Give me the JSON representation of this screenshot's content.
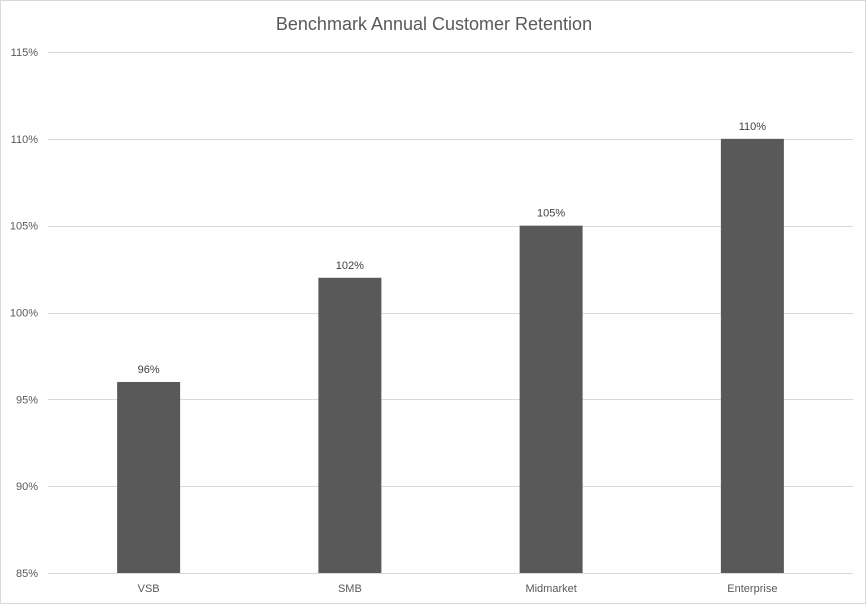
{
  "chart_data": {
    "type": "bar",
    "title": "Benchmark Annual Customer Retention",
    "categories": [
      "VSB",
      "SMB",
      "Midmarket",
      "Enterprise"
    ],
    "values": [
      96,
      102,
      105,
      110
    ],
    "data_labels": [
      "96%",
      "102%",
      "105%",
      "110%"
    ],
    "ylim": [
      85,
      115
    ],
    "yticks": [
      85,
      90,
      95,
      100,
      105,
      110,
      115
    ],
    "ytick_labels": [
      "85%",
      "90%",
      "95%",
      "100%",
      "105%",
      "110%",
      "115%"
    ],
    "xlabel": "",
    "ylabel": "",
    "grid": true,
    "legend": "none",
    "bar_color": "#595959",
    "grid_color": "#d9d9d9"
  }
}
